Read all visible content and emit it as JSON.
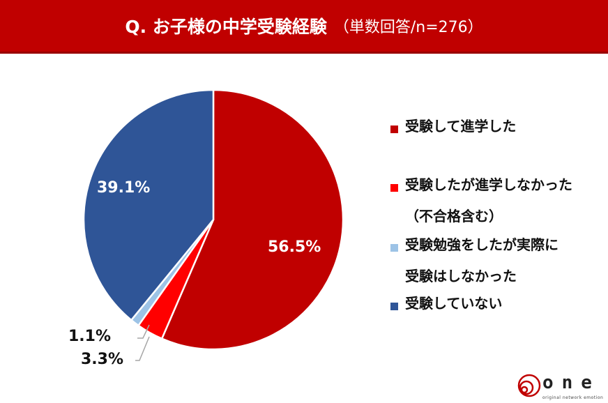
{
  "header": {
    "question": "Q. お子様の中学受験経験",
    "note": "（単数回答/n=276）"
  },
  "chart_data": {
    "type": "pie",
    "title": "Q. お子様の中学受験経験（単数回答/n=276）",
    "n": 276,
    "start_angle": "12 o'clock, clockwise",
    "categories": [
      "受験して進学した",
      "受験したが進学しなかった（不合格含む）",
      "受験勉強をしたが実際に受験はしなかった",
      "受験していない"
    ],
    "values": [
      56.5,
      3.3,
      1.1,
      39.1
    ],
    "unit": "%",
    "colors": [
      "#c00000",
      "#ff0000",
      "#9dc3e6",
      "#2f5597"
    ],
    "data_labels": [
      "56.5%",
      "3.3%",
      "1.1%",
      "39.1%"
    ],
    "legend_position": "right"
  },
  "labels": {
    "s0": "56.5%",
    "s1": "3.3%",
    "s2": "1.1%",
    "s3": "39.1%"
  },
  "legend": {
    "items": [
      {
        "line1": "受験して進学した",
        "line2": "",
        "color": "#c00000"
      },
      {
        "line1": "受験したが進学しなかった",
        "line2": "（不合格含む）",
        "color": "#ff0000"
      },
      {
        "line1": "受験勉強をしたが実際に",
        "line2": "受験はしなかった",
        "color": "#9dc3e6"
      },
      {
        "line1": "受験していない",
        "line2": "",
        "color": "#2f5597"
      }
    ]
  },
  "logo": {
    "word": "one",
    "tagline": "original network emotion"
  }
}
